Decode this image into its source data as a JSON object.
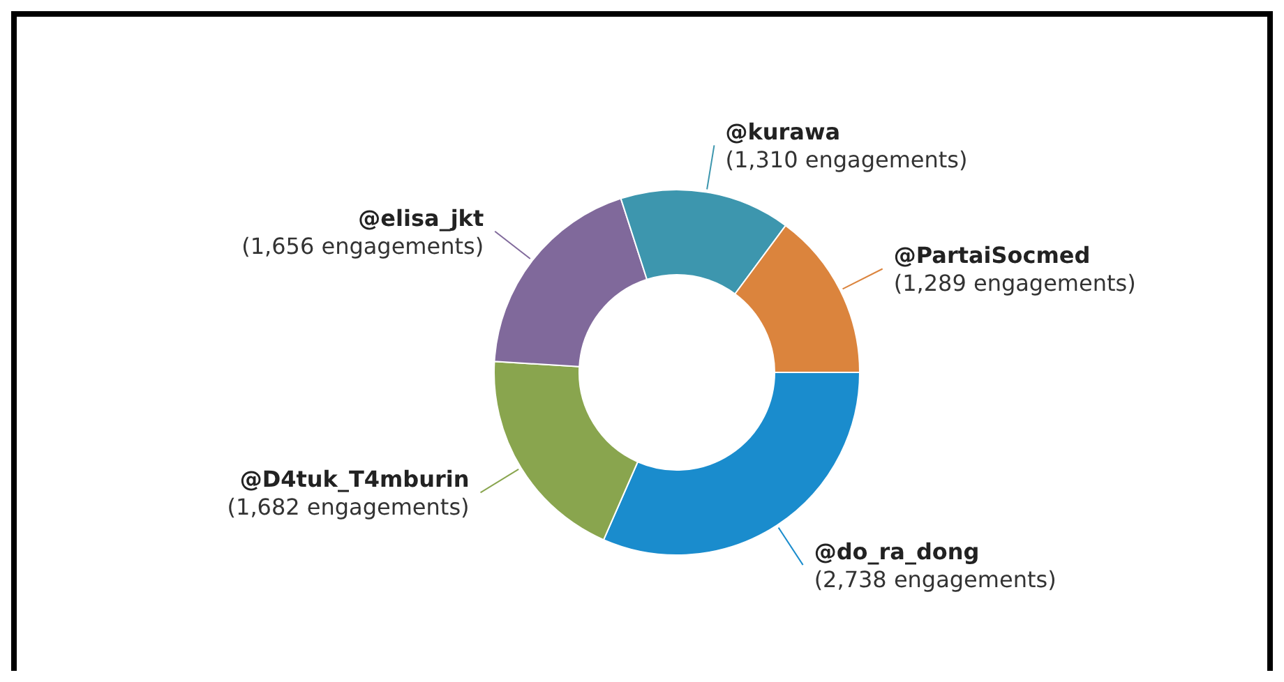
{
  "chart_data": {
    "type": "donut",
    "categories": [
      "@do_ra_dong",
      "@D4tuk_T4mburin",
      "@elisa_jkt",
      "@kurawa",
      "@PartaiSocmed"
    ],
    "values": [
      2738,
      1682,
      1656,
      1310,
      1289
    ],
    "value_labels": [
      "(2,738 engagements)",
      "(1,682 engagements)",
      "(1,656 engagements)",
      "(1,310 engagements)",
      "(1,289 engagements)"
    ],
    "colors": [
      "#1a8ccd",
      "#89a54e",
      "#80699b",
      "#3d96ae",
      "#db843d"
    ]
  }
}
